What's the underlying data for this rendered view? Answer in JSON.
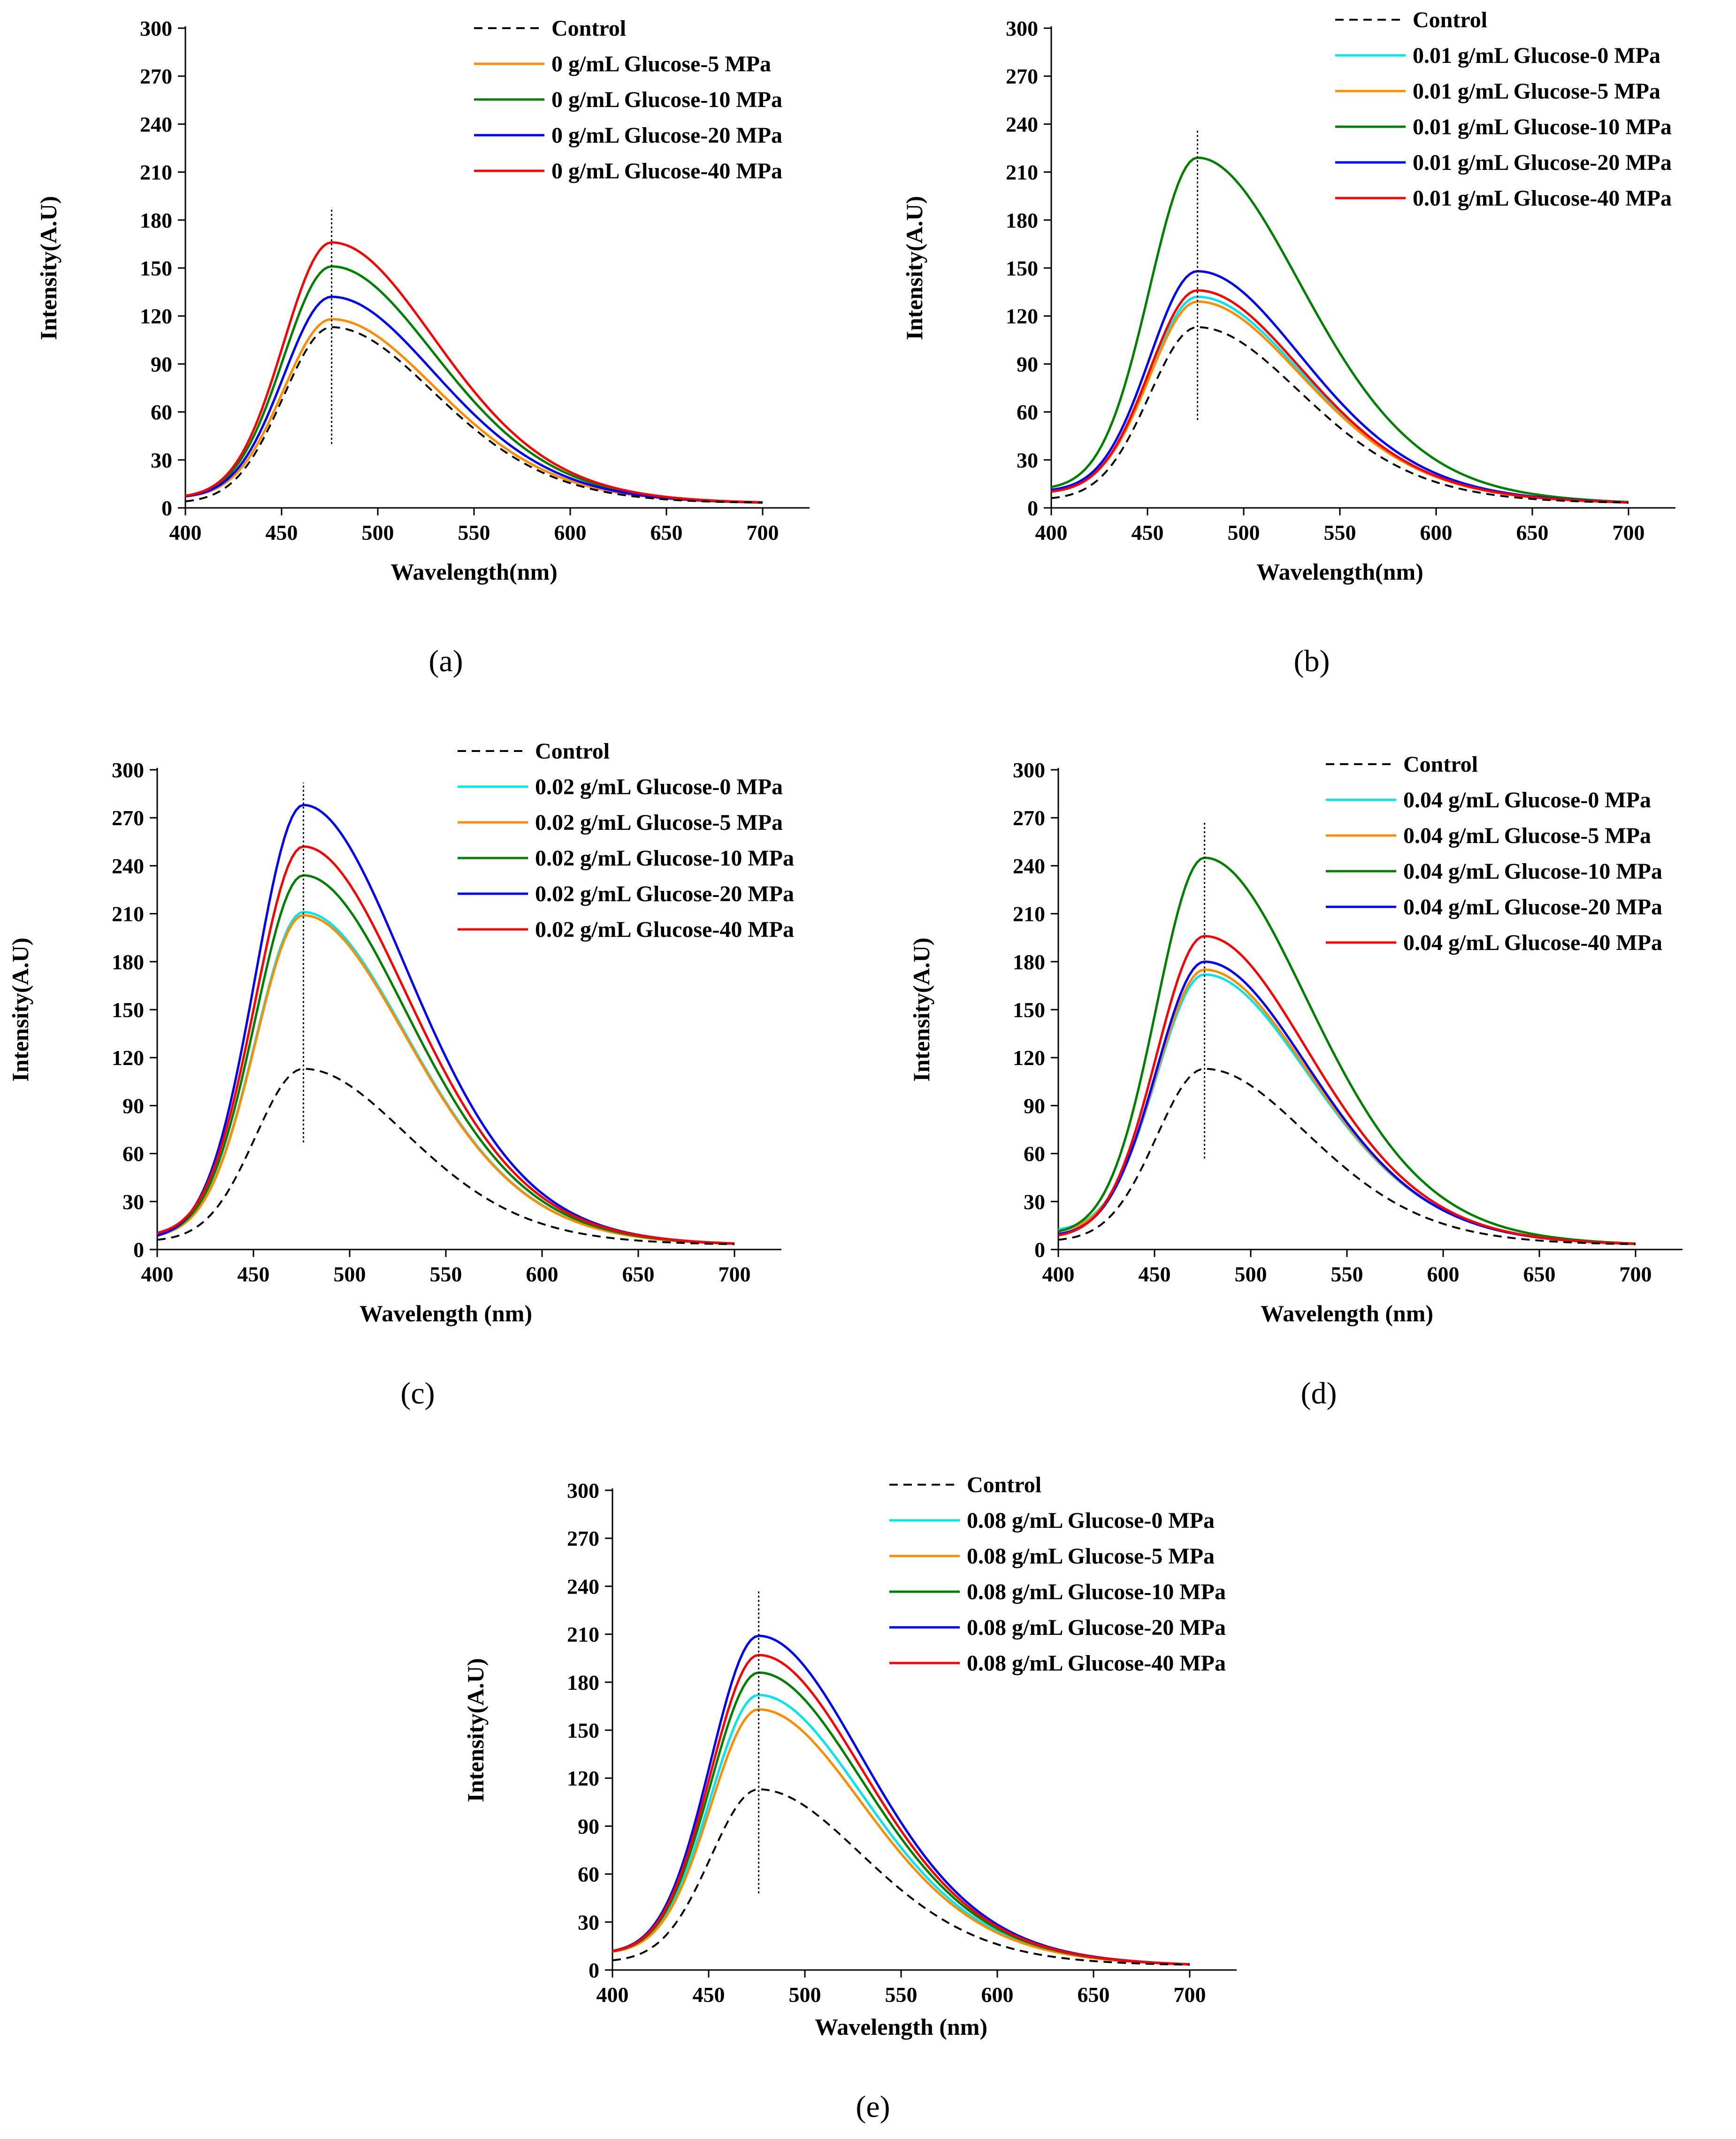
{
  "figure": {
    "panel_labels": [
      "(a)",
      "(b)",
      "(c)",
      "(d)",
      "(e)"
    ]
  },
  "colors": {
    "control": "#000000",
    "glucose_0_mpa": "#00e5ee",
    "glucose_5_mpa": "#ff8c00",
    "glucose_10_mpa": "#008000",
    "glucose_20_mpa": "#0000ff",
    "glucose_40_mpa": "#ff0000"
  },
  "chart_data": [
    {
      "panel": "(a)",
      "type": "line",
      "xlabel": "Wavelength(nm)",
      "ylabel": "Intensity(A.U)",
      "xlim": [
        400,
        700
      ],
      "ylim": [
        0,
        300
      ],
      "xticks": [
        400,
        450,
        500,
        550,
        600,
        650,
        700
      ],
      "yticks": [
        0,
        30,
        60,
        90,
        120,
        150,
        180,
        210,
        240,
        270,
        300
      ],
      "peak_marker": {
        "x": 476,
        "y_range": [
          40,
          188
        ],
        "style": "dotted"
      },
      "legend_position": "top-right",
      "series": [
        {
          "name": "Control",
          "style": "dashed",
          "color_key": "control",
          "peak": 113,
          "base": 3
        },
        {
          "name": "0 g/mL Glucose-5 MPa",
          "color_key": "glucose_5_mpa",
          "peak": 118,
          "base": 6
        },
        {
          "name": "0 g/mL Glucose-10 MPa",
          "color_key": "glucose_10_mpa",
          "peak": 151,
          "base": 6
        },
        {
          "name": "0 g/mL Glucose-20 MPa",
          "color_key": "glucose_20_mpa",
          "peak": 132,
          "base": 6
        },
        {
          "name": "0 g/mL Glucose-40 MPa",
          "color_key": "glucose_40_mpa",
          "peak": 166,
          "base": 6
        }
      ]
    },
    {
      "panel": "(b)",
      "type": "line",
      "xlabel": "Wavelength(nm)",
      "ylabel": "Intensity(A.U)",
      "xlim": [
        400,
        700
      ],
      "ylim": [
        0,
        300
      ],
      "xticks": [
        400,
        450,
        500,
        550,
        600,
        650,
        700
      ],
      "yticks": [
        0,
        30,
        60,
        90,
        120,
        150,
        180,
        210,
        240,
        270,
        300
      ],
      "peak_marker": {
        "x": 476,
        "y_range": [
          55,
          237
        ],
        "style": "dotted"
      },
      "legend_position": "top-right",
      "series": [
        {
          "name": "Control",
          "style": "dashed",
          "color_key": "control",
          "peak": 113,
          "base": 5
        },
        {
          "name": "0.01 g/mL Glucose-0 MPa",
          "color_key": "glucose_0_mpa",
          "peak": 132,
          "base": 10
        },
        {
          "name": "0.01 g/mL Glucose-5 MPa",
          "color_key": "glucose_5_mpa",
          "peak": 129,
          "base": 10
        },
        {
          "name": "0.01 g/mL Glucose-10 MPa",
          "color_key": "glucose_10_mpa",
          "peak": 219,
          "base": 11
        },
        {
          "name": "0.01 g/mL Glucose-20 MPa",
          "color_key": "glucose_20_mpa",
          "peak": 148,
          "base": 10
        },
        {
          "name": "0.01 g/mL Glucose-40 MPa",
          "color_key": "glucose_40_mpa",
          "peak": 136,
          "base": 9
        }
      ]
    },
    {
      "panel": "(c)",
      "type": "line",
      "xlabel": "Wavelength (nm)",
      "ylabel": "Intensity(A.U)",
      "xlim": [
        400,
        700
      ],
      "ylim": [
        0,
        300
      ],
      "xticks": [
        400,
        450,
        500,
        550,
        600,
        650,
        700
      ],
      "yticks": [
        0,
        30,
        60,
        90,
        120,
        150,
        180,
        210,
        240,
        270,
        300
      ],
      "peak_marker": {
        "x": 476,
        "y_range": [
          67,
          292
        ],
        "style": "dotted"
      },
      "legend_position": "top-right",
      "series": [
        {
          "name": "Control",
          "style": "dashed",
          "color_key": "control",
          "peak": 113,
          "base": 5
        },
        {
          "name": "0.02 g/mL Glucose-0 MPa",
          "color_key": "glucose_0_mpa",
          "peak": 211,
          "base": 7
        },
        {
          "name": "0.02 g/mL Glucose-5 MPa",
          "color_key": "glucose_5_mpa",
          "peak": 209,
          "base": 7
        },
        {
          "name": "0.02 g/mL Glucose-10 MPa",
          "color_key": "glucose_10_mpa",
          "peak": 234,
          "base": 7
        },
        {
          "name": "0.02 g/mL Glucose-20 MPa",
          "color_key": "glucose_20_mpa",
          "peak": 278,
          "base": 6
        },
        {
          "name": "0.02 g/mL Glucose-40 MPa",
          "color_key": "glucose_40_mpa",
          "peak": 252,
          "base": 8
        }
      ]
    },
    {
      "panel": "(d)",
      "type": "line",
      "xlabel": "Wavelength (nm)",
      "ylabel": "Intensity(A.U)",
      "xlim": [
        400,
        700
      ],
      "ylim": [
        0,
        300
      ],
      "xticks": [
        400,
        450,
        500,
        550,
        600,
        650,
        700
      ],
      "yticks": [
        0,
        30,
        60,
        90,
        120,
        150,
        180,
        210,
        240,
        270,
        300
      ],
      "peak_marker": {
        "x": 476,
        "y_range": [
          57,
          267
        ],
        "style": "dotted"
      },
      "legend_position": "top-right",
      "series": [
        {
          "name": "Control",
          "style": "dashed",
          "color_key": "control",
          "peak": 113,
          "base": 5
        },
        {
          "name": "0.04 g/mL Glucose-0 MPa",
          "color_key": "glucose_0_mpa",
          "peak": 172,
          "base": 11
        },
        {
          "name": "0.04 g/mL Glucose-5 MPa",
          "color_key": "glucose_5_mpa",
          "peak": 175,
          "base": 10
        },
        {
          "name": "0.04 g/mL Glucose-10 MPa",
          "color_key": "glucose_10_mpa",
          "peak": 245,
          "base": 9
        },
        {
          "name": "0.04 g/mL Glucose-20 MPa",
          "color_key": "glucose_20_mpa",
          "peak": 180,
          "base": 8
        },
        {
          "name": "0.04 g/mL Glucose-40 MPa",
          "color_key": "glucose_40_mpa",
          "peak": 196,
          "base": 7
        }
      ]
    },
    {
      "panel": "(e)",
      "type": "line",
      "xlabel": "Wavelength (nm)",
      "ylabel": "Intensity(A.U)",
      "xlim": [
        400,
        700
      ],
      "ylim": [
        0,
        300
      ],
      "xticks": [
        400,
        450,
        500,
        550,
        600,
        650,
        700
      ],
      "yticks": [
        0,
        30,
        60,
        90,
        120,
        150,
        180,
        210,
        240,
        270,
        300
      ],
      "peak_marker": {
        "x": 476,
        "y_range": [
          48,
          238
        ],
        "style": "dotted"
      },
      "legend_position": "top-right",
      "series": [
        {
          "name": "Control",
          "style": "dashed",
          "color_key": "control",
          "peak": 113,
          "base": 5
        },
        {
          "name": "0.08 g/mL Glucose-0 MPa",
          "color_key": "glucose_0_mpa",
          "peak": 172,
          "base": 10
        },
        {
          "name": "0.08 g/mL Glucose-5 MPa",
          "color_key": "glucose_5_mpa",
          "peak": 163,
          "base": 10
        },
        {
          "name": "0.08 g/mL Glucose-10 MPa",
          "color_key": "glucose_10_mpa",
          "peak": 186,
          "base": 10
        },
        {
          "name": "0.08 g/mL Glucose-20 MPa",
          "color_key": "glucose_20_mpa",
          "peak": 209,
          "base": 10
        },
        {
          "name": "0.08 g/mL Glucose-40 MPa",
          "color_key": "glucose_40_mpa",
          "peak": 197,
          "base": 10
        }
      ]
    }
  ]
}
